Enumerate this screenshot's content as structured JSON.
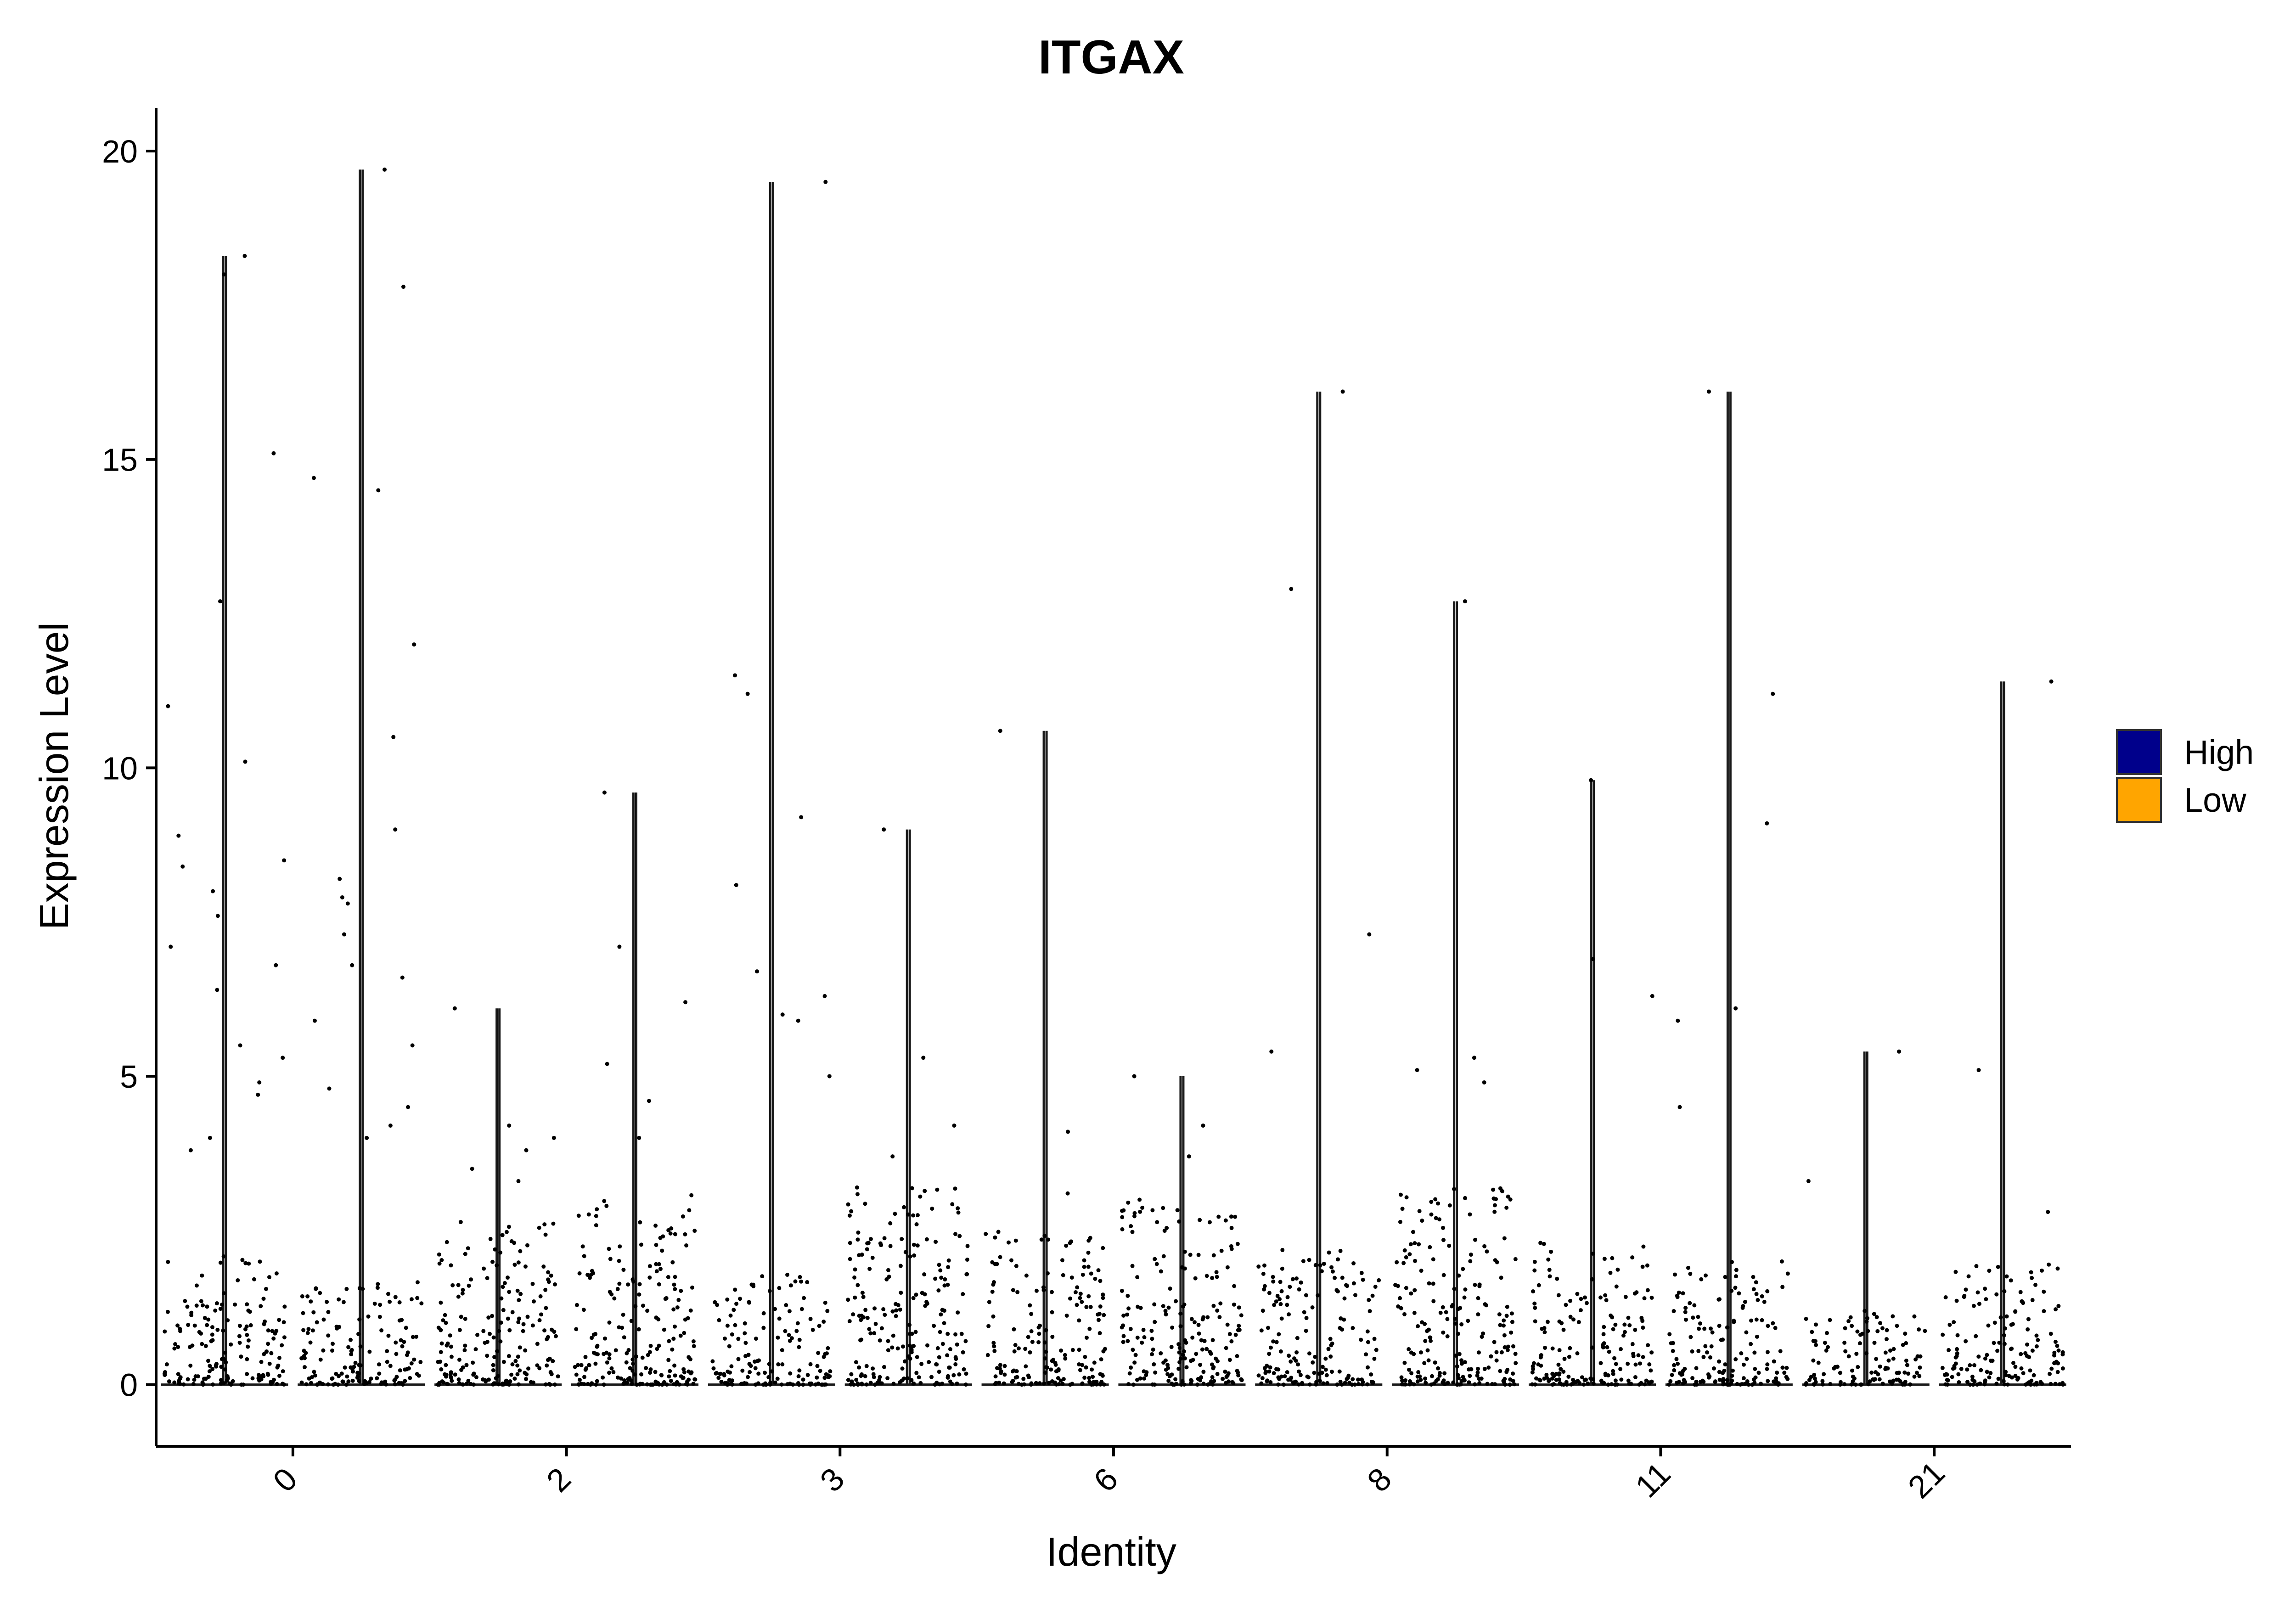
{
  "chart_data": {
    "type": "violin",
    "title": "ITGAX",
    "xlabel": "Identity",
    "ylabel": "Expression Level",
    "ylim": [
      -1,
      20.7
    ],
    "yticks": [
      0,
      5,
      10,
      15,
      20
    ],
    "categories": [
      "0",
      "2",
      "3",
      "6",
      "8",
      "11",
      "21"
    ],
    "grid": false,
    "legend": {
      "position": "right",
      "entries": [
        {
          "name": "High",
          "color": "#00008B"
        },
        {
          "name": "Low",
          "color": "#FFA500"
        }
      ]
    },
    "series": [
      {
        "name": "High",
        "max": [
          18.3,
          6.1,
          19.5,
          10.6,
          16.1,
          9.8,
          5.4
        ]
      },
      {
        "name": "Low",
        "max": [
          19.7,
          9.6,
          9.0,
          5.0,
          12.7,
          16.1,
          11.4
        ]
      }
    ],
    "outliers": [
      {
        "category": "0",
        "group": "High",
        "values": [
          18.3,
          18.0,
          15.1,
          12.7,
          11.0,
          10.1,
          8.9,
          8.4,
          8.5,
          8.0,
          7.6,
          7.1,
          6.8,
          6.4,
          5.5,
          5.3,
          4.9,
          4.7,
          4.0,
          3.8
        ]
      },
      {
        "category": "0",
        "group": "Low",
        "values": [
          19.7,
          17.8,
          14.7,
          14.5,
          12.0,
          10.5,
          9.0,
          8.2,
          7.9,
          7.8,
          7.3,
          6.8,
          6.6,
          5.9,
          5.5,
          4.8,
          4.5,
          4.2,
          4.0
        ]
      },
      {
        "category": "2",
        "group": "High",
        "values": [
          6.1,
          4.2,
          4.0,
          3.8,
          3.5,
          3.3
        ]
      },
      {
        "category": "2",
        "group": "Low",
        "values": [
          9.6,
          7.1,
          6.2,
          5.2,
          4.6,
          4.0
        ]
      },
      {
        "category": "3",
        "group": "High",
        "values": [
          19.5,
          11.5,
          11.2,
          9.2,
          8.1,
          6.7,
          6.3,
          6.0,
          5.9,
          5.0
        ]
      },
      {
        "category": "3",
        "group": "Low",
        "values": [
          9.0,
          5.3,
          4.2,
          3.7
        ]
      },
      {
        "category": "6",
        "group": "High",
        "values": [
          10.6,
          4.1,
          3.1
        ]
      },
      {
        "category": "6",
        "group": "Low",
        "values": [
          5.0,
          4.2,
          3.7
        ]
      },
      {
        "category": "8",
        "group": "High",
        "values": [
          16.1,
          12.9,
          7.3,
          5.4
        ]
      },
      {
        "category": "8",
        "group": "Low",
        "values": [
          12.7,
          5.3,
          5.1,
          4.9
        ]
      },
      {
        "category": "11",
        "group": "High",
        "values": [
          9.8,
          6.9,
          6.3
        ]
      },
      {
        "category": "11",
        "group": "Low",
        "values": [
          16.1,
          11.2,
          9.1,
          6.1,
          5.9,
          4.5
        ]
      },
      {
        "category": "21",
        "group": "High",
        "values": [
          5.4,
          3.3
        ]
      },
      {
        "category": "21",
        "group": "Low",
        "values": [
          11.4,
          5.1,
          2.8
        ]
      }
    ],
    "bulk_upper": [
      [
        2.1,
        1.7
      ],
      [
        2.8,
        3.1
      ],
      [
        1.8,
        3.2
      ],
      [
        2.5,
        3.0
      ],
      [
        2.2,
        3.2
      ],
      [
        2.3,
        2.0
      ],
      [
        1.2,
        2.0
      ]
    ]
  }
}
